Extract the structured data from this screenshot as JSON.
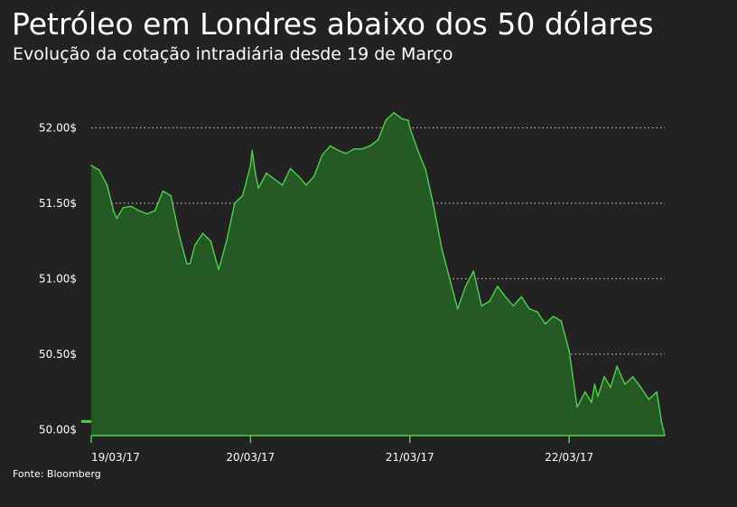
{
  "title": "Petróleo em Londres abaixo dos 50 dólares",
  "subtitle": "Evolução da cotação intradiária desde 19 de Março",
  "source": "Fonte: Bloomberg",
  "colors": {
    "background": "#222222",
    "area_fill": "#255a25",
    "line": "#4fd04f",
    "grid": "#d9d9d9",
    "axis": "#4fd04f",
    "text": "#ffffff"
  },
  "chart_data": {
    "type": "area",
    "title": "Petróleo em Londres abaixo dos 50 dólares",
    "subtitle": "Evolução da cotação intradiária desde 19 de Março",
    "xlabel": "",
    "ylabel": "",
    "x_ticks": [
      "19/03/17",
      "20/03/17",
      "21/03/17",
      "22/03/17"
    ],
    "y_ticks": [
      {
        "value": 50.0,
        "label": "50.00$"
      },
      {
        "value": 50.5,
        "label": "50.50$"
      },
      {
        "value": 51.0,
        "label": "51.00$"
      },
      {
        "value": 51.5,
        "label": "51.50$"
      },
      {
        "value": 52.0,
        "label": "52.00$"
      }
    ],
    "xlim": [
      0,
      3.6
    ],
    "ylim": [
      49.96,
      52.2
    ],
    "grid": true,
    "series": [
      {
        "x": [
          0.0,
          0.05,
          0.1,
          0.14,
          0.16,
          0.2,
          0.25,
          0.3,
          0.35,
          0.4,
          0.45,
          0.5,
          0.55,
          0.6,
          0.62,
          0.65,
          0.7,
          0.75,
          0.8,
          0.85,
          0.9,
          0.95,
          1.0,
          1.01,
          1.03,
          1.05,
          1.1,
          1.15,
          1.2,
          1.25,
          1.3,
          1.35,
          1.4,
          1.45,
          1.5,
          1.55,
          1.6,
          1.65,
          1.7,
          1.75,
          1.8,
          1.85,
          1.9,
          1.95,
          1.99,
          2.0,
          2.05,
          2.1,
          2.15,
          2.2,
          2.25,
          2.3,
          2.35,
          2.4,
          2.45,
          2.5,
          2.55,
          2.6,
          2.65,
          2.7,
          2.75,
          2.8,
          2.85,
          2.9,
          2.95,
          3.0,
          3.05,
          3.1,
          3.14,
          3.16,
          3.18,
          3.22,
          3.26,
          3.3,
          3.35,
          3.4,
          3.45,
          3.5,
          3.55,
          3.58,
          3.6
        ],
        "values": [
          51.75,
          51.72,
          51.62,
          51.45,
          51.4,
          51.47,
          51.48,
          51.45,
          51.43,
          51.45,
          51.58,
          51.55,
          51.3,
          51.1,
          51.1,
          51.22,
          51.3,
          51.25,
          51.06,
          51.25,
          51.5,
          51.55,
          51.75,
          51.85,
          51.7,
          51.6,
          51.7,
          51.66,
          51.62,
          51.73,
          51.68,
          51.62,
          51.68,
          51.82,
          51.88,
          51.85,
          51.83,
          51.86,
          51.86,
          51.88,
          51.92,
          52.05,
          52.1,
          52.06,
          52.05,
          52.0,
          51.85,
          51.72,
          51.48,
          51.2,
          51.0,
          50.8,
          50.95,
          51.05,
          50.82,
          50.85,
          50.95,
          50.88,
          50.82,
          50.88,
          50.8,
          50.78,
          50.7,
          50.75,
          50.72,
          50.52,
          50.15,
          50.25,
          50.18,
          50.3,
          50.22,
          50.35,
          50.28,
          50.42,
          50.3,
          50.35,
          50.28,
          50.2,
          50.25,
          50.05,
          49.96
        ]
      }
    ]
  }
}
